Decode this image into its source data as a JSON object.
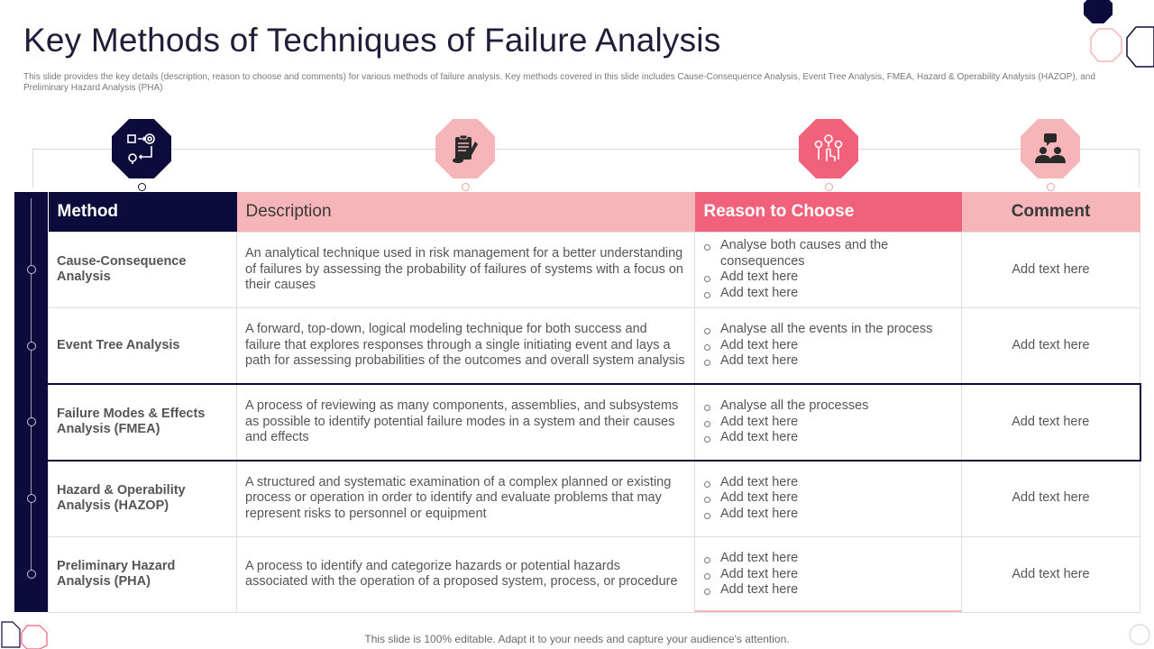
{
  "slide": {
    "title": "Key Methods of Techniques of Failure Analysis",
    "subtitle": "This slide provides the key details (description, reason to choose and comments) for various methods of failure analysis. Key methods covered in this slide includes Cause-Consequence Analysis, Event Tree Analysis, FMEA, Hazard & Operability Analysis (HAZOP), and Preliminary Hazard Analysis (PHA)",
    "footer": "This slide is 100% editable. Adapt it to your needs and capture your audience's attention."
  },
  "icons": [
    "process-cycle-icon",
    "clipboard-pen-icon",
    "hand-gears-icon",
    "team-discussion-icon"
  ],
  "colors": {
    "navy": "#0d0b3b",
    "pink": "#f6b5b8",
    "coral": "#f2617a"
  },
  "table": {
    "headers": {
      "method": "Method",
      "description": "Description",
      "reason": "Reason to Choose",
      "comment": "Comment"
    },
    "rows": [
      {
        "method": "Cause-Consequence Analysis",
        "description": "An analytical technique used in risk management for a better understanding of failures by assessing the probability of failures of systems with a focus on their causes",
        "reasons": [
          "Analyse both causes and the consequences",
          "Add text here",
          "Add text here"
        ],
        "comment": "Add text here"
      },
      {
        "method": "Event Tree Analysis",
        "description": "A forward, top-down, logical modeling technique for both success and failure that explores responses through a single initiating event and lays a path for assessing probabilities of the outcomes and overall system analysis",
        "reasons": [
          "Analyse all the events in the process",
          "Add text here",
          "Add text here"
        ],
        "comment": "Add text here"
      },
      {
        "method": "Failure Modes & Effects Analysis (FMEA)",
        "description": "A process of reviewing as many components, assemblies, and subsystems as possible to identify potential failure modes in a system and their causes and effects",
        "reasons": [
          "Analyse all the processes",
          "Add text here",
          "Add text here"
        ],
        "comment": "Add text here"
      },
      {
        "method": "Hazard & Operability Analysis (HAZOP)",
        "description": "A structured and systematic examination of a complex planned or existing process or operation in order to identify and evaluate problems that may represent risks to personnel or equipment",
        "reasons": [
          "Add text here",
          "Add text here",
          "Add text here"
        ],
        "comment": "Add text here"
      },
      {
        "method": "Preliminary Hazard Analysis (PHA)",
        "description": "A process to identify and categorize hazards or potential hazards associated with the operation of a proposed system, process, or procedure",
        "reasons": [
          "Add text here",
          "Add text here",
          "Add text here"
        ],
        "comment": "Add text here"
      }
    ]
  }
}
